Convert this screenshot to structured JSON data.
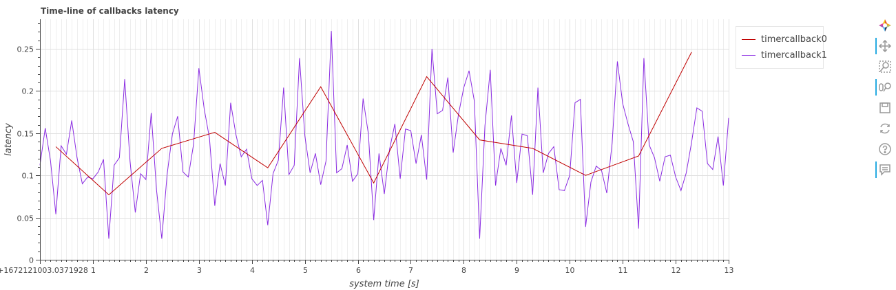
{
  "chart_data": {
    "type": "line",
    "title": "Time-line of callbacks latency",
    "xlabel": "system time [s]",
    "ylabel": "latency",
    "xlim": [
      0,
      13
    ],
    "ylim": [
      0,
      0.285
    ],
    "x_ticks": [
      {
        "value": 0,
        "label": "0+1672121003.0371928"
      },
      {
        "value": 1,
        "label": "1"
      },
      {
        "value": 2,
        "label": "2"
      },
      {
        "value": 3,
        "label": "3"
      },
      {
        "value": 4,
        "label": "4"
      },
      {
        "value": 5,
        "label": "5"
      },
      {
        "value": 6,
        "label": "6"
      },
      {
        "value": 7,
        "label": "7"
      },
      {
        "value": 8,
        "label": "8"
      },
      {
        "value": 9,
        "label": "9"
      },
      {
        "value": 10,
        "label": "10"
      },
      {
        "value": 11,
        "label": "11"
      },
      {
        "value": 12,
        "label": "12"
      },
      {
        "value": 13,
        "label": "13"
      }
    ],
    "y_ticks": [
      {
        "value": 0,
        "label": "0"
      },
      {
        "value": 0.05,
        "label": "0.05"
      },
      {
        "value": 0.1,
        "label": "0.1"
      },
      {
        "value": 0.15,
        "label": "0.15"
      },
      {
        "value": 0.2,
        "label": "0.2"
      },
      {
        "value": 0.25,
        "label": "0.25"
      }
    ],
    "grid": true,
    "legend_position": "right",
    "series": [
      {
        "name": "timercallback0",
        "color": "#c00000",
        "x": [
          0.3,
          1.3,
          2.3,
          3.3,
          4.3,
          5.3,
          6.3,
          7.3,
          8.3,
          9.3,
          10.3,
          11.3,
          12.3
        ],
        "y": [
          0.134,
          0.077,
          0.132,
          0.151,
          0.109,
          0.205,
          0.091,
          0.217,
          0.142,
          0.132,
          0.1,
          0.123,
          0.246
        ]
      },
      {
        "name": "timercallback1",
        "color": "#8a2be2",
        "x": [
          0.0,
          0.1,
          0.2,
          0.3,
          0.4,
          0.5,
          0.6,
          0.7,
          0.8,
          0.9,
          1.0,
          1.1,
          1.2,
          1.3,
          1.4,
          1.5,
          1.6,
          1.7,
          1.8,
          1.9,
          2.0,
          2.1,
          2.2,
          2.3,
          2.4,
          2.5,
          2.6,
          2.7,
          2.8,
          2.9,
          3.0,
          3.1,
          3.2,
          3.3,
          3.4,
          3.5,
          3.6,
          3.7,
          3.8,
          3.9,
          4.0,
          4.1,
          4.2,
          4.3,
          4.4,
          4.5,
          4.6,
          4.7,
          4.8,
          4.9,
          5.0,
          5.1,
          5.2,
          5.3,
          5.4,
          5.5,
          5.6,
          5.7,
          5.8,
          5.9,
          6.0,
          6.1,
          6.2,
          6.3,
          6.4,
          6.5,
          6.6,
          6.7,
          6.8,
          6.9,
          7.0,
          7.1,
          7.2,
          7.3,
          7.4,
          7.5,
          7.6,
          7.7,
          7.8,
          7.9,
          8.0,
          8.1,
          8.2,
          8.3,
          8.4,
          8.5,
          8.6,
          8.7,
          8.8,
          8.9,
          9.0,
          9.1,
          9.2,
          9.3,
          9.4,
          9.5,
          9.6,
          9.7,
          9.8,
          9.9,
          10.0,
          10.1,
          10.2,
          10.3,
          10.4,
          10.5,
          10.6,
          10.7,
          10.8,
          10.9,
          11.0,
          11.1,
          11.2,
          11.3,
          11.4,
          11.5,
          11.6,
          11.7,
          11.8,
          11.9,
          12.0,
          12.1,
          12.2,
          12.3,
          12.4,
          12.5,
          12.6,
          12.7,
          12.8,
          12.9,
          13.0
        ],
        "y": [
          0.112,
          0.156,
          0.117,
          0.054,
          0.135,
          0.125,
          0.165,
          0.121,
          0.09,
          0.098,
          0.096,
          0.104,
          0.119,
          0.025,
          0.112,
          0.121,
          0.214,
          0.117,
          0.056,
          0.102,
          0.095,
          0.174,
          0.083,
          0.025,
          0.101,
          0.149,
          0.17,
          0.104,
          0.098,
          0.137,
          0.227,
          0.179,
          0.144,
          0.064,
          0.114,
          0.088,
          0.186,
          0.148,
          0.122,
          0.131,
          0.096,
          0.088,
          0.094,
          0.041,
          0.102,
          0.118,
          0.204,
          0.101,
          0.112,
          0.239,
          0.147,
          0.103,
          0.126,
          0.089,
          0.117,
          0.271,
          0.103,
          0.108,
          0.136,
          0.093,
          0.102,
          0.191,
          0.149,
          0.047,
          0.126,
          0.078,
          0.131,
          0.161,
          0.096,
          0.155,
          0.153,
          0.114,
          0.148,
          0.095,
          0.25,
          0.173,
          0.177,
          0.216,
          0.127,
          0.172,
          0.204,
          0.224,
          0.188,
          0.025,
          0.159,
          0.225,
          0.088,
          0.132,
          0.112,
          0.171,
          0.091,
          0.149,
          0.147,
          0.077,
          0.204,
          0.103,
          0.126,
          0.134,
          0.083,
          0.082,
          0.1,
          0.186,
          0.19,
          0.039,
          0.092,
          0.111,
          0.106,
          0.079,
          0.138,
          0.235,
          0.185,
          0.161,
          0.14,
          0.037,
          0.239,
          0.136,
          0.121,
          0.093,
          0.122,
          0.124,
          0.098,
          0.082,
          0.103,
          0.139,
          0.18,
          0.176,
          0.114,
          0.107,
          0.146,
          0.088,
          0.168
        ]
      }
    ]
  },
  "toolbar": {
    "tools": [
      {
        "name": "bokeh-logo-icon",
        "active": false
      },
      {
        "name": "pan-icon",
        "active": true
      },
      {
        "name": "box-zoom-icon",
        "active": false
      },
      {
        "name": "wheel-zoom-icon",
        "active": true
      },
      {
        "name": "save-icon",
        "active": false
      },
      {
        "name": "reset-icon",
        "active": false
      },
      {
        "name": "help-icon",
        "active": false
      },
      {
        "name": "hover-icon",
        "active": true
      }
    ]
  }
}
